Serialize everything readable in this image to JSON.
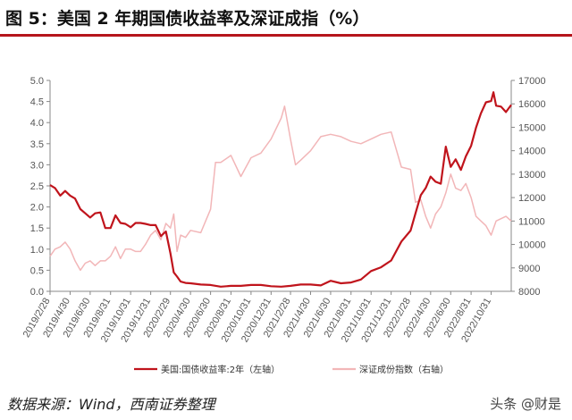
{
  "header": {
    "title": "图 5：美国 2 年期国债收益率及深证成指（%）"
  },
  "footer": {
    "source": "数据来源：Wind，西南证券整理",
    "watermark": "头条 @财是"
  },
  "colors": {
    "title_rule": "#b5151b",
    "series_yield": "#c0141c",
    "series_szse": "#f2b6b8",
    "axis": "#888888"
  },
  "chart_data": {
    "type": "line",
    "x_tick_labels": [
      "2019/2/28",
      "2019/4/30",
      "2019/6/30",
      "2019/8/31",
      "2019/10/31",
      "2019/12/31",
      "2020/2/29",
      "2020/4/30",
      "2020/6/30",
      "2020/8/31",
      "2020/10/31",
      "2020/12/31",
      "2021/2/28",
      "2021/4/30",
      "2021/6/30",
      "2021/8/31",
      "2021/10/31",
      "2021/12/31",
      "2022/2/28",
      "2022/4/30",
      "2022/6/30",
      "2022/8/31",
      "2022/10/31"
    ],
    "x_range": [
      "2019/2/28",
      "2022/12/31"
    ],
    "y_left": {
      "range": [
        0,
        5
      ],
      "ticks": [
        "0.0",
        "0.5",
        "1.0",
        "1.5",
        "2.0",
        "2.5",
        "3.0",
        "3.5",
        "4.0",
        "4.5",
        "5.0"
      ]
    },
    "y_right": {
      "range": [
        8000,
        17000
      ],
      "ticks": [
        "8000",
        "9000",
        "10000",
        "11000",
        "12000",
        "13000",
        "14000",
        "15000",
        "16000",
        "17000"
      ]
    },
    "grid": false,
    "legend_placement": "bottom-center",
    "series": [
      {
        "name": "美国:国债收益率:2年（左轴）",
        "axis": "left",
        "points": [
          [
            "2019/2/28",
            2.52
          ],
          [
            "2019/3/15",
            2.45
          ],
          [
            "2019/3/31",
            2.27
          ],
          [
            "2019/4/15",
            2.38
          ],
          [
            "2019/4/30",
            2.27
          ],
          [
            "2019/5/15",
            2.2
          ],
          [
            "2019/5/31",
            1.95
          ],
          [
            "2019/6/15",
            1.85
          ],
          [
            "2019/6/30",
            1.75
          ],
          [
            "2019/7/15",
            1.85
          ],
          [
            "2019/7/31",
            1.87
          ],
          [
            "2019/8/15",
            1.5
          ],
          [
            "2019/8/31",
            1.5
          ],
          [
            "2019/9/15",
            1.8
          ],
          [
            "2019/9/30",
            1.62
          ],
          [
            "2019/10/15",
            1.6
          ],
          [
            "2019/10/31",
            1.52
          ],
          [
            "2019/11/15",
            1.62
          ],
          [
            "2019/11/30",
            1.62
          ],
          [
            "2019/12/15",
            1.6
          ],
          [
            "2019/12/31",
            1.57
          ],
          [
            "2020/1/15",
            1.57
          ],
          [
            "2020/1/31",
            1.31
          ],
          [
            "2020/2/15",
            1.42
          ],
          [
            "2020/2/29",
            0.9
          ],
          [
            "2020/3/10",
            0.45
          ],
          [
            "2020/3/20",
            0.35
          ],
          [
            "2020/3/31",
            0.23
          ],
          [
            "2020/4/15",
            0.2
          ],
          [
            "2020/4/30",
            0.19
          ],
          [
            "2020/5/31",
            0.16
          ],
          [
            "2020/6/30",
            0.15
          ],
          [
            "2020/7/31",
            0.11
          ],
          [
            "2020/8/31",
            0.13
          ],
          [
            "2020/9/30",
            0.13
          ],
          [
            "2020/10/31",
            0.15
          ],
          [
            "2020/11/30",
            0.15
          ],
          [
            "2020/12/31",
            0.12
          ],
          [
            "2021/1/31",
            0.11
          ],
          [
            "2021/2/28",
            0.13
          ],
          [
            "2021/3/31",
            0.16
          ],
          [
            "2021/4/30",
            0.16
          ],
          [
            "2021/5/31",
            0.14
          ],
          [
            "2021/6/30",
            0.25
          ],
          [
            "2021/7/31",
            0.19
          ],
          [
            "2021/8/31",
            0.21
          ],
          [
            "2021/9/30",
            0.28
          ],
          [
            "2021/10/31",
            0.48
          ],
          [
            "2021/11/30",
            0.57
          ],
          [
            "2021/12/31",
            0.73
          ],
          [
            "2022/1/31",
            1.18
          ],
          [
            "2022/2/28",
            1.44
          ],
          [
            "2022/3/15",
            1.85
          ],
          [
            "2022/3/31",
            2.28
          ],
          [
            "2022/4/15",
            2.45
          ],
          [
            "2022/4/30",
            2.72
          ],
          [
            "2022/5/15",
            2.6
          ],
          [
            "2022/5/31",
            2.55
          ],
          [
            "2022/6/15",
            3.43
          ],
          [
            "2022/6/30",
            2.95
          ],
          [
            "2022/7/15",
            3.13
          ],
          [
            "2022/7/31",
            2.88
          ],
          [
            "2022/8/15",
            3.2
          ],
          [
            "2022/8/31",
            3.45
          ],
          [
            "2022/9/15",
            3.88
          ],
          [
            "2022/9/30",
            4.22
          ],
          [
            "2022/10/15",
            4.48
          ],
          [
            "2022/10/31",
            4.51
          ],
          [
            "2022/11/7",
            4.72
          ],
          [
            "2022/11/15",
            4.4
          ],
          [
            "2022/11/30",
            4.38
          ],
          [
            "2022/12/15",
            4.25
          ],
          [
            "2022/12/31",
            4.42
          ]
        ]
      },
      {
        "name": "深证成份指数（右轴）",
        "axis": "right",
        "points": [
          [
            "2019/2/28",
            9500
          ],
          [
            "2019/3/15",
            9800
          ],
          [
            "2019/3/31",
            9900
          ],
          [
            "2019/4/15",
            10100
          ],
          [
            "2019/4/30",
            9800
          ],
          [
            "2019/5/15",
            9300
          ],
          [
            "2019/5/31",
            8900
          ],
          [
            "2019/6/15",
            9200
          ],
          [
            "2019/6/30",
            9300
          ],
          [
            "2019/7/15",
            9100
          ],
          [
            "2019/7/31",
            9300
          ],
          [
            "2019/8/15",
            9300
          ],
          [
            "2019/8/31",
            9500
          ],
          [
            "2019/9/15",
            9900
          ],
          [
            "2019/9/30",
            9400
          ],
          [
            "2019/10/15",
            9800
          ],
          [
            "2019/10/31",
            9800
          ],
          [
            "2019/11/15",
            9700
          ],
          [
            "2019/11/30",
            9700
          ],
          [
            "2019/12/15",
            10000
          ],
          [
            "2019/12/31",
            10400
          ],
          [
            "2020/1/15",
            10600
          ],
          [
            "2020/1/31",
            10200
          ],
          [
            "2020/2/15",
            10900
          ],
          [
            "2020/2/29",
            10700
          ],
          [
            "2020/3/10",
            11300
          ],
          [
            "2020/3/20",
            9700
          ],
          [
            "2020/3/31",
            10400
          ],
          [
            "2020/4/15",
            10300
          ],
          [
            "2020/4/30",
            10600
          ],
          [
            "2020/5/31",
            10500
          ],
          [
            "2020/6/30",
            11500
          ],
          [
            "2020/7/15",
            13500
          ],
          [
            "2020/7/31",
            13500
          ],
          [
            "2020/8/31",
            13800
          ],
          [
            "2020/9/30",
            12900
          ],
          [
            "2020/10/31",
            13700
          ],
          [
            "2020/11/30",
            13900
          ],
          [
            "2020/12/31",
            14500
          ],
          [
            "2021/1/31",
            15400
          ],
          [
            "2021/2/10",
            15900
          ],
          [
            "2021/2/28",
            14500
          ],
          [
            "2021/3/15",
            13400
          ],
          [
            "2021/3/31",
            13600
          ],
          [
            "2021/4/30",
            14000
          ],
          [
            "2021/5/31",
            14600
          ],
          [
            "2021/6/30",
            14700
          ],
          [
            "2021/7/31",
            14600
          ],
          [
            "2021/8/31",
            14400
          ],
          [
            "2021/9/30",
            14300
          ],
          [
            "2021/10/31",
            14500
          ],
          [
            "2021/11/30",
            14700
          ],
          [
            "2021/12/31",
            14800
          ],
          [
            "2022/1/31",
            13300
          ],
          [
            "2022/2/28",
            13200
          ],
          [
            "2022/3/15",
            11800
          ],
          [
            "2022/3/31",
            11900
          ],
          [
            "2022/4/15",
            11200
          ],
          [
            "2022/4/30",
            10700
          ],
          [
            "2022/5/15",
            11300
          ],
          [
            "2022/5/31",
            11600
          ],
          [
            "2022/6/15",
            12200
          ],
          [
            "2022/6/30",
            13000
          ],
          [
            "2022/7/15",
            12400
          ],
          [
            "2022/7/31",
            12300
          ],
          [
            "2022/8/15",
            12600
          ],
          [
            "2022/8/31",
            12000
          ],
          [
            "2022/9/15",
            11200
          ],
          [
            "2022/9/30",
            11000
          ],
          [
            "2022/10/15",
            10800
          ],
          [
            "2022/10/31",
            10400
          ],
          [
            "2022/11/15",
            11000
          ],
          [
            "2022/11/30",
            11100
          ],
          [
            "2022/12/15",
            11200
          ],
          [
            "2022/12/31",
            11000
          ]
        ]
      }
    ]
  }
}
